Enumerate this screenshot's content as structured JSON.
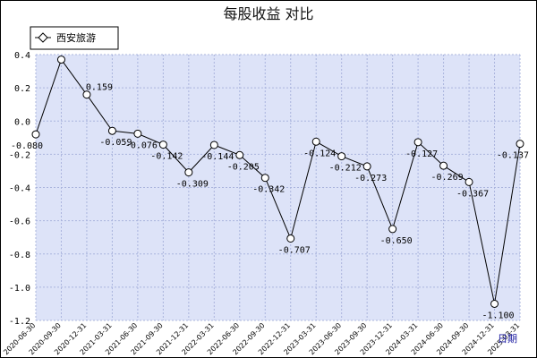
{
  "chart_data": {
    "type": "line",
    "title": "每股收益  对比",
    "xlabel": "日期",
    "ylabel": "",
    "ylim": [
      -1.2,
      0.4
    ],
    "yticks": [
      "0.4",
      "0.2",
      "0.0",
      "-0.2",
      "-0.4",
      "-0.6",
      "-0.8",
      "-1.0",
      "-1.2"
    ],
    "grid": true,
    "legend_position": "top-left",
    "categories": [
      "2020-06-30",
      "2020-09-30",
      "2020-12-31",
      "2021-03-31",
      "2021-06-30",
      "2021-09-30",
      "2021-12-31",
      "2022-03-31",
      "2022-06-30",
      "2022-09-30",
      "2022-12-31",
      "2023-03-31",
      "2023-06-30",
      "2023-09-30",
      "2023-12-31",
      "2024-03-31",
      "2024-06-30",
      "2024-09-30",
      "2024-12-31",
      "2025-03-31"
    ],
    "series": [
      {
        "name": "西安旅游",
        "values": [
          -0.08,
          0.37,
          0.159,
          -0.059,
          -0.076,
          -0.142,
          -0.309,
          -0.144,
          -0.205,
          -0.342,
          -0.707,
          -0.124,
          -0.212,
          -0.273,
          -0.65,
          -0.127,
          -0.269,
          -0.367,
          -1.1,
          -0.137
        ],
        "labels": [
          "-0.080",
          "",
          "0.159",
          "-0.059",
          "-0.076",
          "-0.142",
          "-0.309",
          "-0.144",
          "-0.205",
          "-0.342",
          "-0.707",
          "-0.124",
          "-0.212",
          "-0.273",
          "-0.650",
          "-0.127",
          "-0.269",
          "-0.367",
          "-1.100",
          "-0.137"
        ]
      }
    ],
    "colors": {
      "plot_bg": "#dde3f8",
      "grid": "#aab4dd",
      "line": "#000000"
    }
  }
}
